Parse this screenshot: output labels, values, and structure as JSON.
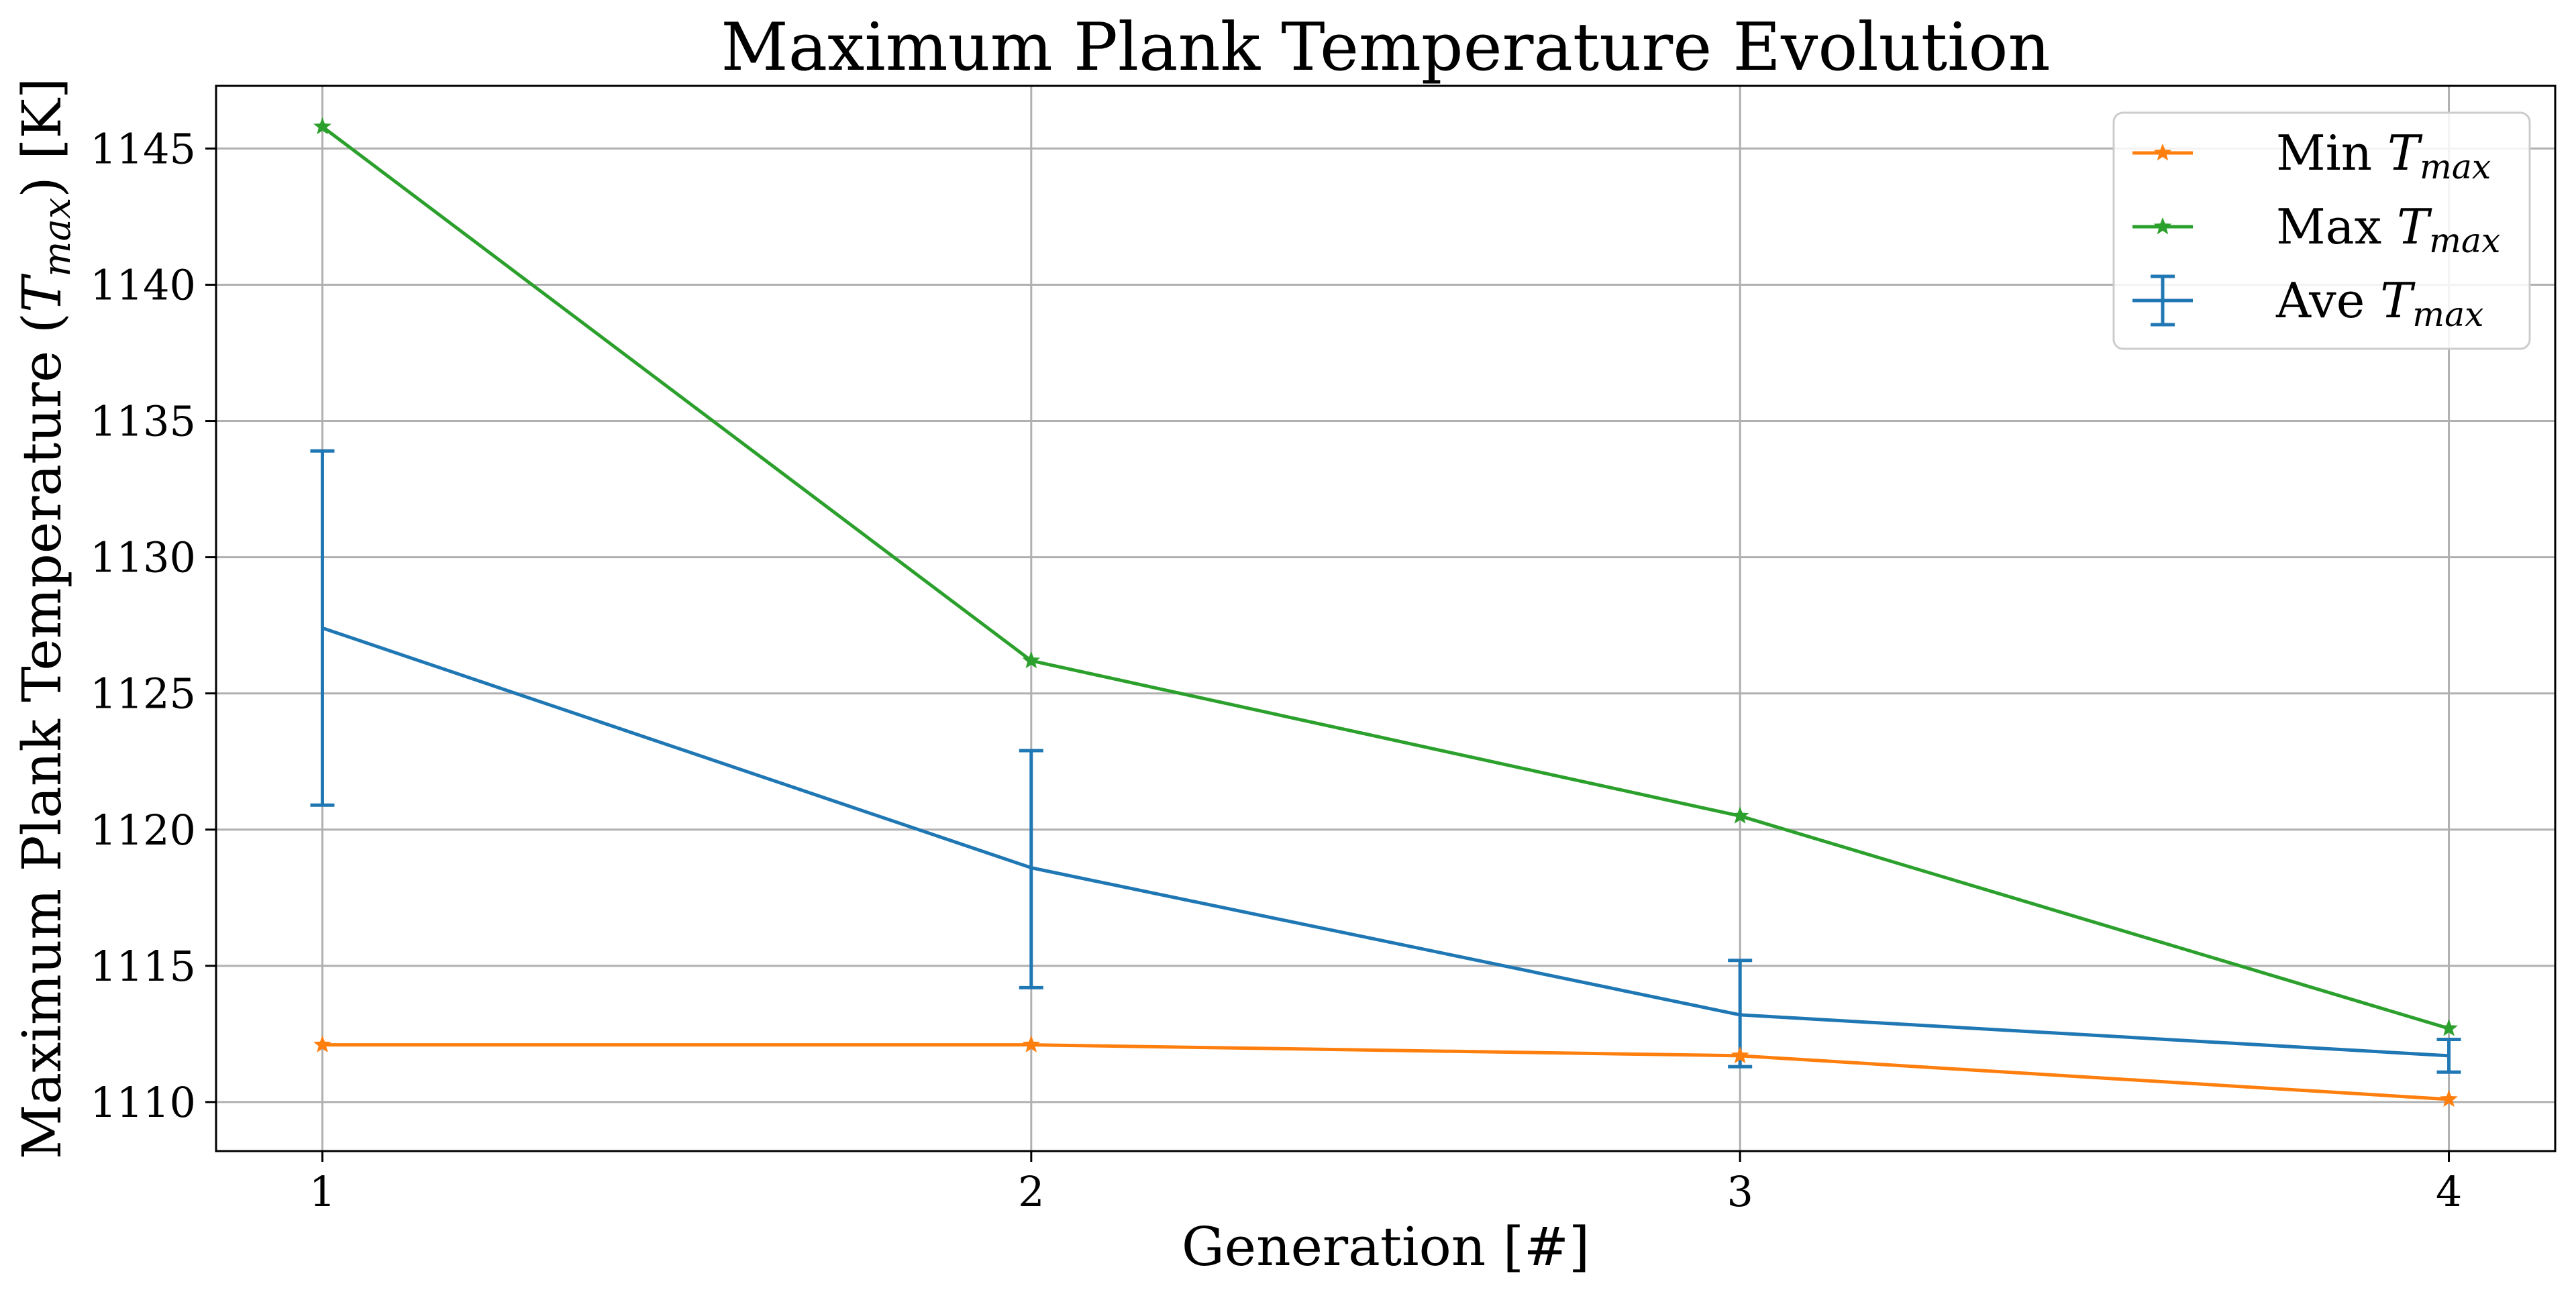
{
  "chart_data": {
    "type": "line",
    "title": "Maximum Plank Temperature Evolution",
    "xlabel": "Generation [#]",
    "ylabel": {
      "prefix": "Maximum Plank Temperature (",
      "symbol": "T",
      "subscript": "max",
      "suffix": ") [K]"
    },
    "x": [
      1,
      2,
      3,
      4
    ],
    "xticks": [
      1,
      2,
      3,
      4
    ],
    "xlim": [
      0.85,
      4.15
    ],
    "yticks": [
      1110,
      1115,
      1120,
      1125,
      1130,
      1135,
      1140,
      1145
    ],
    "ylim": [
      1108.2,
      1147.3
    ],
    "grid": true,
    "legend_position": "top-right",
    "series": [
      {
        "name": {
          "prefix": "Min ",
          "symbol": "T",
          "subscript": "max"
        },
        "color": "#ff7f0e",
        "marker": "star",
        "values": [
          1112.1,
          1112.1,
          1111.7,
          1110.1
        ]
      },
      {
        "name": {
          "prefix": "Max ",
          "symbol": "T",
          "subscript": "max"
        },
        "color": "#2ca02c",
        "marker": "star",
        "values": [
          1145.8,
          1126.2,
          1120.5,
          1112.7
        ]
      },
      {
        "name": {
          "prefix": "Ave ",
          "symbol": "T",
          "subscript": "max"
        },
        "color": "#1f77b4",
        "marker": "errorbar",
        "values": [
          1127.4,
          1118.6,
          1113.2,
          1111.7
        ],
        "error_low": [
          1120.9,
          1114.2,
          1111.3,
          1111.1
        ],
        "error_high": [
          1133.9,
          1122.9,
          1115.2,
          1112.3
        ]
      }
    ]
  }
}
